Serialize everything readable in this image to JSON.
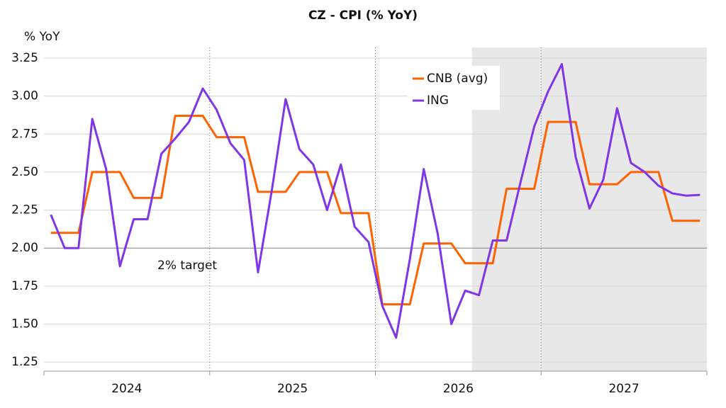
{
  "chart_data": {
    "type": "line",
    "title": "CZ - CPI (% YoY)",
    "y_axis_label": "% YoY",
    "categories": [
      null,
      null,
      null,
      null,
      null,
      null,
      null,
      null,
      null,
      null,
      null,
      null,
      null,
      null,
      null,
      null,
      null,
      null,
      null,
      null,
      null,
      null,
      null,
      null,
      null,
      null,
      null,
      null,
      null,
      null,
      null,
      null,
      null,
      null,
      null,
      null,
      null,
      null,
      null,
      null,
      null,
      null,
      null,
      null,
      null,
      null,
      null,
      null
    ],
    "year_labels": [
      "2024",
      "2025",
      "2026",
      "2027"
    ],
    "series": [
      {
        "name": "CNB (avg)",
        "color": "#ff6200",
        "values": [
          2.1,
          2.1,
          2.1,
          2.5,
          2.5,
          2.5,
          2.33,
          2.33,
          2.33,
          2.87,
          2.87,
          2.87,
          2.73,
          2.73,
          2.73,
          2.37,
          2.37,
          2.37,
          2.5,
          2.5,
          2.5,
          2.23,
          2.23,
          2.23,
          1.63,
          1.63,
          1.63,
          2.03,
          2.03,
          2.03,
          1.9,
          1.9,
          1.9,
          2.39,
          2.39,
          2.39,
          2.83,
          2.83,
          2.83,
          2.42,
          2.42,
          2.42,
          2.5,
          2.5,
          2.5,
          2.18,
          2.18,
          2.18
        ]
      },
      {
        "name": "ING",
        "color": "#7f35e8",
        "values": [
          2.22,
          2.0,
          2.0,
          2.85,
          2.52,
          1.88,
          2.19,
          2.19,
          2.62,
          2.72,
          2.83,
          3.05,
          2.91,
          2.69,
          2.58,
          1.84,
          2.38,
          2.98,
          2.65,
          2.55,
          2.25,
          2.55,
          2.14,
          2.04,
          1.62,
          1.41,
          1.93,
          2.52,
          2.1,
          1.5,
          1.72,
          1.69,
          2.05,
          2.05,
          2.43,
          2.8,
          3.03,
          3.21,
          2.6,
          2.26,
          2.45,
          2.92,
          2.56,
          2.5,
          2.41,
          2.36,
          2.345,
          2.35
        ]
      }
    ],
    "ylim": [
      1.19,
      3.32
    ],
    "yticks": [
      {
        "value": 1.25,
        "label": "1.25"
      },
      {
        "value": 1.5,
        "label": "1.50"
      },
      {
        "value": 1.75,
        "label": "1.75"
      },
      {
        "value": 2,
        "label": "2.00"
      },
      {
        "value": 2.25,
        "label": "2.25"
      },
      {
        "value": 2.5,
        "label": "2.50"
      },
      {
        "value": 2.75,
        "label": "2.75"
      },
      {
        "value": 3,
        "label": "3.00"
      },
      {
        "value": 3.25,
        "label": "3.25"
      }
    ],
    "grid": true,
    "reference_line": {
      "value": 2,
      "label": "2% target"
    },
    "forecast_region": {
      "start_index": 31
    },
    "legend": "upper center"
  }
}
